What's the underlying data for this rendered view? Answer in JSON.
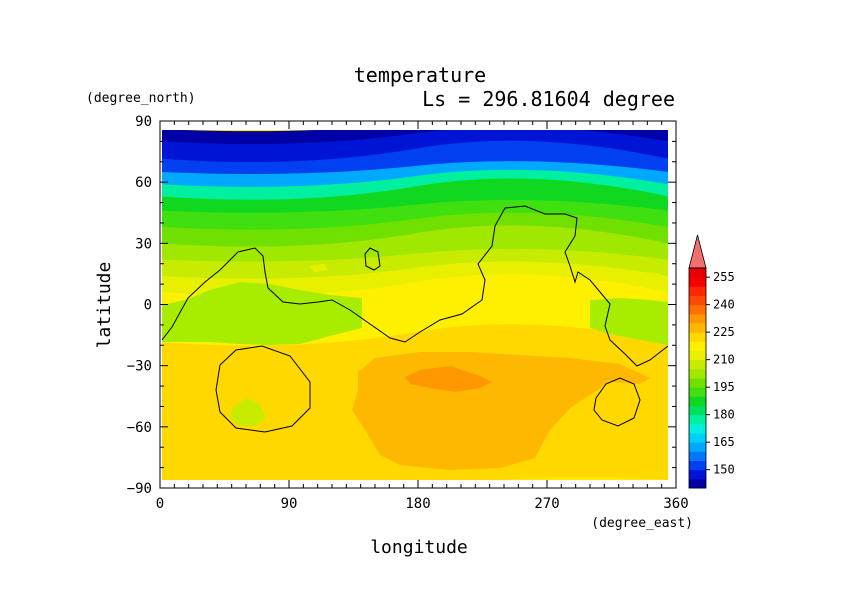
{
  "chart_data": {
    "type": "heatmap",
    "title": "temperature",
    "subtitle": "Ls = 296.81604 degree",
    "xlabel": "longitude",
    "ylabel": "latitude",
    "x_units": "(degree_east)",
    "y_units": "(degree_north)",
    "xlim": [
      0,
      360
    ],
    "ylim": [
      -90,
      90
    ],
    "x_ticks": [
      "0",
      "90",
      "180",
      "270",
      "360"
    ],
    "y_ticks": [
      "90",
      "60",
      "30",
      "0",
      "−30",
      "−60",
      "−90"
    ],
    "colorbar": {
      "levels": [
        140,
        145,
        150,
        155,
        160,
        165,
        170,
        175,
        180,
        185,
        190,
        195,
        200,
        205,
        210,
        215,
        220,
        225,
        230,
        235,
        240,
        245,
        250,
        255,
        260
      ],
      "labels": [
        "150",
        "165",
        "180",
        "195",
        "210",
        "225",
        "240",
        "255"
      ],
      "colors": [
        "#0000a6",
        "#0014d6",
        "#0040f0",
        "#0078f8",
        "#00a8ff",
        "#00d0f8",
        "#00f0e0",
        "#00f0a0",
        "#00e060",
        "#10d820",
        "#40e010",
        "#70e000",
        "#a0e800",
        "#c8ec00",
        "#e8f000",
        "#fff000",
        "#ffd800",
        "#ffb800",
        "#ff9800",
        "#ff7000",
        "#ff4800",
        "#ff2800",
        "#f80000",
        "#e80000"
      ],
      "over_color": "#f07070"
    },
    "fields": {
      "zonal_mean_profile": [
        {
          "lat": 85,
          "value": 143
        },
        {
          "lat": 75,
          "value": 145
        },
        {
          "lat": 68,
          "value": 152
        },
        {
          "lat": 62,
          "value": 163
        },
        {
          "lat": 56,
          "value": 176
        },
        {
          "lat": 50,
          "value": 186
        },
        {
          "lat": 42,
          "value": 193
        },
        {
          "lat": 34,
          "value": 199
        },
        {
          "lat": 26,
          "value": 204
        },
        {
          "lat": 18,
          "value": 208
        },
        {
          "lat": 10,
          "value": 212
        },
        {
          "lat": 2,
          "value": 215
        },
        {
          "lat": -6,
          "value": 217
        },
        {
          "lat": -15,
          "value": 219
        },
        {
          "lat": -22,
          "value": 221
        },
        {
          "lat": -30,
          "value": 222
        },
        {
          "lat": -45,
          "value": 222
        },
        {
          "lat": -60,
          "value": 222
        },
        {
          "lat": -75,
          "value": 221
        },
        {
          "lat": -85,
          "value": 220
        }
      ],
      "warm_region_max": {
        "lon": [
          185,
          215
        ],
        "lat": [
          -40,
          -30
        ],
        "value": 236
      }
    }
  }
}
